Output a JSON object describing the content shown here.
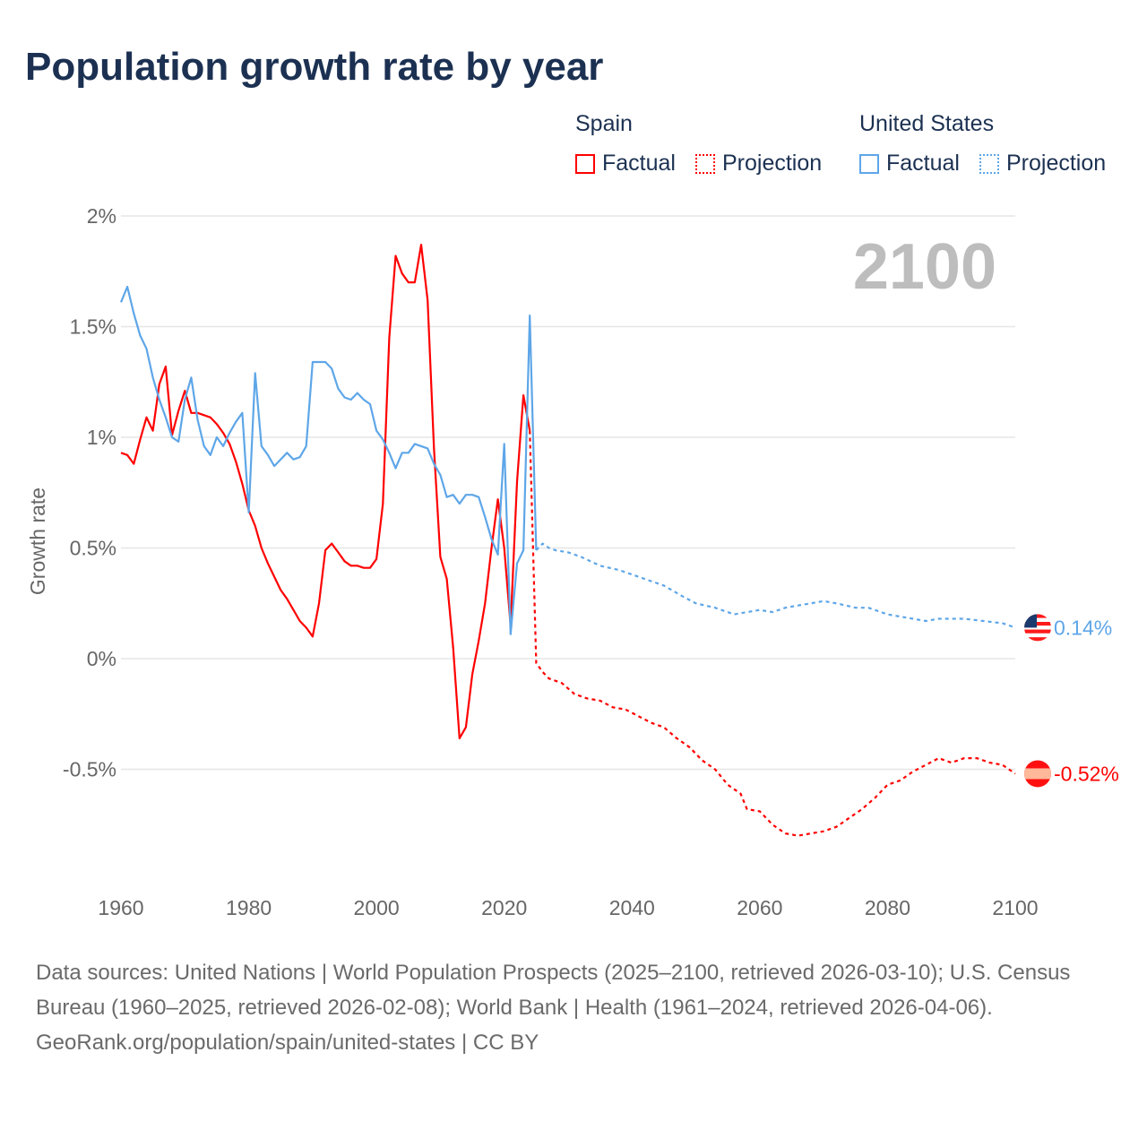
{
  "title": "Population growth rate by year",
  "legend": {
    "groups": [
      {
        "name": "Spain",
        "color": "#ff0000",
        "items": [
          "Factual",
          "Projection"
        ]
      },
      {
        "name": "United States",
        "color": "#5ea6e8",
        "items": [
          "Factual",
          "Projection"
        ]
      }
    ]
  },
  "year_label": "2100",
  "footer": {
    "sources": "Data sources: United Nations | World Population Prospects (2025–2100, retrieved 2026-03-10); U.S. Census Bureau (1960–2025, retrieved 2026-02-08); World Bank | Health (1961–2024, retrieved 2026-04-06).",
    "link": "GeoRank.org/population/spain/united-states | CC BY"
  },
  "chart_data": {
    "type": "line",
    "title": "Population growth rate by year",
    "xlabel": "",
    "ylabel": "Growth rate",
    "xlim": [
      1960,
      2100
    ],
    "ylim": [
      -1.0,
      2.0
    ],
    "x_ticks": [
      {
        "v": 1960,
        "label": "1960"
      },
      {
        "v": 1980,
        "label": "1980"
      },
      {
        "v": 2000,
        "label": "2000"
      },
      {
        "v": 2020,
        "label": "2020"
      },
      {
        "v": 2040,
        "label": "2040"
      },
      {
        "v": 2060,
        "label": "2060"
      },
      {
        "v": 2080,
        "label": "2080"
      },
      {
        "v": 2100,
        "label": "2100"
      }
    ],
    "y_ticks": [
      {
        "v": 2,
        "label": "2%"
      },
      {
        "v": 1.5,
        "label": "1.5%"
      },
      {
        "v": 1,
        "label": "1%"
      },
      {
        "v": 0.5,
        "label": "0.5%"
      },
      {
        "v": 0,
        "label": "0%"
      },
      {
        "v": -0.5,
        "label": "-0.5%"
      }
    ],
    "grid": true,
    "series": [
      {
        "name": "Spain Factual",
        "color": "#ff0000",
        "dashed": false,
        "x": [
          1960,
          1961,
          1962,
          1963,
          1964,
          1965,
          1966,
          1967,
          1968,
          1969,
          1970,
          1971,
          1972,
          1973,
          1974,
          1975,
          1976,
          1977,
          1978,
          1979,
          1980,
          1981,
          1982,
          1983,
          1984,
          1985,
          1986,
          1987,
          1988,
          1989,
          1990,
          1991,
          1992,
          1993,
          1994,
          1995,
          1996,
          1997,
          1998,
          1999,
          2000,
          2001,
          2002,
          2003,
          2004,
          2005,
          2006,
          2007,
          2008,
          2009,
          2010,
          2011,
          2012,
          2013,
          2014,
          2015,
          2016,
          2017,
          2018,
          2019,
          2020,
          2021,
          2022,
          2023,
          2024
        ],
        "y": [
          0.93,
          0.92,
          0.88,
          0.99,
          1.09,
          1.03,
          1.24,
          1.32,
          1.01,
          1.12,
          1.21,
          1.11,
          1.11,
          1.1,
          1.09,
          1.06,
          1.02,
          0.97,
          0.89,
          0.79,
          0.67,
          0.6,
          0.5,
          0.43,
          0.37,
          0.31,
          0.27,
          0.22,
          0.17,
          0.14,
          0.1,
          0.25,
          0.49,
          0.52,
          0.48,
          0.44,
          0.42,
          0.42,
          0.41,
          0.41,
          0.45,
          0.7,
          1.45,
          1.82,
          1.74,
          1.7,
          1.7,
          1.87,
          1.62,
          0.95,
          0.46,
          0.36,
          0.05,
          -0.36,
          -0.31,
          -0.07,
          0.08,
          0.25,
          0.5,
          0.72,
          0.5,
          0.15,
          0.8,
          1.19,
          1.03
        ]
      },
      {
        "name": "Spain Projection",
        "color": "#ff0000",
        "dashed": true,
        "x": [
          2024,
          2025,
          2026,
          2027,
          2029,
          2031,
          2033,
          2035,
          2037,
          2039,
          2041,
          2043,
          2045,
          2047,
          2049,
          2051,
          2053,
          2055,
          2057,
          2058,
          2060,
          2062,
          2064,
          2066,
          2068,
          2070,
          2072,
          2074,
          2076,
          2078,
          2080,
          2082,
          2084,
          2086,
          2088,
          2090,
          2092,
          2094,
          2096,
          2098,
          2100
        ],
        "y": [
          1.03,
          -0.02,
          -0.06,
          -0.09,
          -0.11,
          -0.16,
          -0.18,
          -0.19,
          -0.22,
          -0.23,
          -0.26,
          -0.29,
          -0.31,
          -0.36,
          -0.4,
          -0.46,
          -0.5,
          -0.57,
          -0.61,
          -0.68,
          -0.69,
          -0.75,
          -0.79,
          -0.8,
          -0.79,
          -0.78,
          -0.76,
          -0.72,
          -0.68,
          -0.63,
          -0.57,
          -0.55,
          -0.51,
          -0.48,
          -0.45,
          -0.47,
          -0.45,
          -0.45,
          -0.47,
          -0.48,
          -0.52
        ]
      },
      {
        "name": "United States Factual",
        "color": "#5ea6e8",
        "dashed": false,
        "x": [
          1960,
          1961,
          1962,
          1963,
          1964,
          1965,
          1966,
          1967,
          1968,
          1969,
          1970,
          1971,
          1972,
          1973,
          1974,
          1975,
          1976,
          1977,
          1978,
          1979,
          1980,
          1981,
          1982,
          1983,
          1984,
          1985,
          1986,
          1987,
          1988,
          1989,
          1990,
          1991,
          1992,
          1993,
          1994,
          1995,
          1996,
          1997,
          1998,
          1999,
          2000,
          2001,
          2002,
          2003,
          2004,
          2005,
          2006,
          2007,
          2008,
          2009,
          2010,
          2011,
          2012,
          2013,
          2014,
          2015,
          2016,
          2017,
          2018,
          2019,
          2020,
          2021,
          2022,
          2023,
          2024,
          2025
        ],
        "y": [
          1.61,
          1.68,
          1.56,
          1.46,
          1.4,
          1.27,
          1.17,
          1.09,
          1.0,
          0.98,
          1.17,
          1.27,
          1.08,
          0.96,
          0.92,
          1.0,
          0.96,
          1.02,
          1.07,
          1.11,
          0.66,
          1.29,
          0.96,
          0.92,
          0.87,
          0.9,
          0.93,
          0.9,
          0.91,
          0.96,
          1.34,
          1.34,
          1.34,
          1.31,
          1.22,
          1.18,
          1.17,
          1.2,
          1.17,
          1.15,
          1.03,
          0.99,
          0.93,
          0.86,
          0.93,
          0.93,
          0.97,
          0.96,
          0.95,
          0.88,
          0.83,
          0.73,
          0.74,
          0.7,
          0.74,
          0.74,
          0.73,
          0.64,
          0.54,
          0.47,
          0.97,
          0.11,
          0.43,
          0.49,
          1.55,
          0.49
        ]
      },
      {
        "name": "United States Projection",
        "color": "#5ea6e8",
        "dashed": true,
        "x": [
          2025,
          2026,
          2027,
          2028,
          2030,
          2032,
          2035,
          2038,
          2040,
          2042,
          2045,
          2048,
          2050,
          2053,
          2056,
          2058,
          2060,
          2062,
          2064,
          2066,
          2068,
          2070,
          2072,
          2075,
          2077,
          2080,
          2082,
          2084,
          2086,
          2088,
          2090,
          2092,
          2095,
          2098,
          2100
        ],
        "y": [
          0.49,
          0.52,
          0.5,
          0.49,
          0.48,
          0.46,
          0.42,
          0.4,
          0.38,
          0.36,
          0.33,
          0.28,
          0.25,
          0.23,
          0.2,
          0.21,
          0.22,
          0.21,
          0.23,
          0.24,
          0.25,
          0.26,
          0.25,
          0.23,
          0.23,
          0.2,
          0.19,
          0.18,
          0.17,
          0.18,
          0.18,
          0.18,
          0.17,
          0.16,
          0.14
        ]
      }
    ],
    "end_labels": [
      {
        "series": "United States",
        "label": "0.14%",
        "value": 0.14,
        "color": "#5ea6e8"
      },
      {
        "series": "Spain",
        "label": "-0.52%",
        "value": -0.52,
        "color": "#ff0000"
      }
    ]
  }
}
